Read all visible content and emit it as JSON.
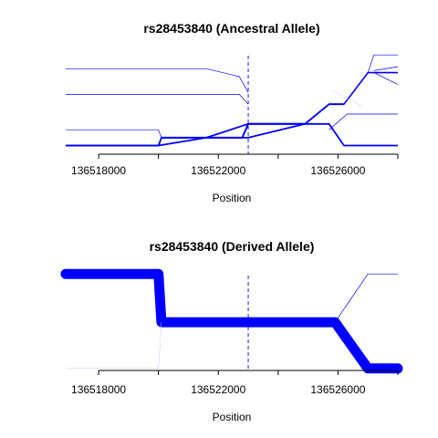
{
  "chart_data": [
    {
      "type": "line",
      "title": "rs28453840 (Ancestral Allele)",
      "xlabel": "Position",
      "ylabel": "",
      "xlim": [
        136516900,
        136528000
      ],
      "xticks": [
        136518000,
        136520000,
        136522000,
        136524000,
        136526000,
        136528000
      ],
      "xtick_labels": [
        "136518000",
        "",
        "136522000",
        "",
        "136526000",
        ""
      ],
      "ylim": [
        0,
        1
      ],
      "grid": false,
      "legend": "none",
      "marker_position": 136523000,
      "colors": {
        "line": "#0000ff",
        "marker": "#0000ff",
        "faint": "#c8c8f0"
      },
      "series": [
        {
          "x": [
            136516900,
            136520000,
            136521600,
            136523000,
            136524900,
            136525700,
            136526200,
            136528000
          ],
          "y": [
            0.06,
            0.06,
            0.14,
            0.14,
            0.28,
            0.28,
            0.06,
            0.06
          ],
          "weight": 1.8
        },
        {
          "x": [
            136516900,
            136520000,
            136520100,
            136521600,
            136523000,
            136524900,
            136525700,
            136526200
          ],
          "y": [
            0.06,
            0.06,
            0.14,
            0.14,
            0.28,
            0.28,
            0.48,
            0.48
          ],
          "weight": 1.8
        },
        {
          "x": [
            136520100,
            136521600,
            136522800,
            136523000,
            136524900
          ],
          "y": [
            0.14,
            0.14,
            0.14,
            0.28,
            0.28
          ],
          "weight": 2.0
        },
        {
          "x": [
            136516900,
            136520000,
            136520100
          ],
          "y": [
            0.22,
            0.22,
            0.14
          ],
          "weight": 0.7
        },
        {
          "x": [
            136516900,
            136522700,
            136523000
          ],
          "y": [
            0.58,
            0.58,
            0.48
          ],
          "weight": 0.7
        },
        {
          "x": [
            136516900,
            136521600,
            136522700,
            136523000
          ],
          "y": [
            0.84,
            0.84,
            0.76,
            0.6
          ],
          "weight": 0.7
        },
        {
          "x": [
            136524900,
            136525700,
            136526200,
            136527000,
            136528000
          ],
          "y": [
            0.28,
            0.48,
            0.48,
            0.8,
            0.8
          ],
          "weight": 1.6
        },
        {
          "x": [
            136527000,
            136527200,
            136528000
          ],
          "y": [
            0.8,
            0.98,
            0.98
          ],
          "weight": 0.7
        },
        {
          "x": [
            136527200,
            136528000
          ],
          "y": [
            0.82,
            0.86
          ],
          "weight": 0.7
        },
        {
          "x": [
            136527200,
            136528000
          ],
          "y": [
            0.8,
            0.68
          ],
          "weight": 0.7
        },
        {
          "x": [
            136525700,
            136526300,
            136528000
          ],
          "y": [
            0.22,
            0.38,
            0.38
          ],
          "weight": 0.7
        },
        {
          "x": [
            136525800,
            136526800
          ],
          "y": [
            0.62,
            0.46
          ],
          "weight": 0.5,
          "faint": true
        }
      ]
    },
    {
      "type": "line",
      "title": "rs28453840 (Derived Allele)",
      "xlabel": "Position",
      "ylabel": "",
      "xlim": [
        136516900,
        136528000
      ],
      "xticks": [
        136518000,
        136520000,
        136522000,
        136524000,
        136526000,
        136528000
      ],
      "xtick_labels": [
        "136518000",
        "",
        "136522000",
        "",
        "136526000",
        ""
      ],
      "ylim": [
        0,
        1
      ],
      "grid": false,
      "legend": "none",
      "marker_position": 136523000,
      "colors": {
        "line": "#0000ff",
        "marker": "#0000ff",
        "faint": "#c8c8f0"
      },
      "series": [
        {
          "x": [
            136516900,
            136520000,
            136520100,
            136525900,
            136527000,
            136528000
          ],
          "y": [
            0.98,
            0.98,
            0.49,
            0.49,
            0.02,
            0.02
          ],
          "weight": 11
        },
        {
          "x": [
            136525900,
            136527000,
            136528000
          ],
          "y": [
            0.49,
            0.98,
            0.98
          ],
          "weight": 0.7
        },
        {
          "x": [
            136516900,
            136520000,
            136520100
          ],
          "y": [
            0.02,
            0.02,
            0.49
          ],
          "weight": 0.5,
          "faint": true
        }
      ]
    }
  ]
}
